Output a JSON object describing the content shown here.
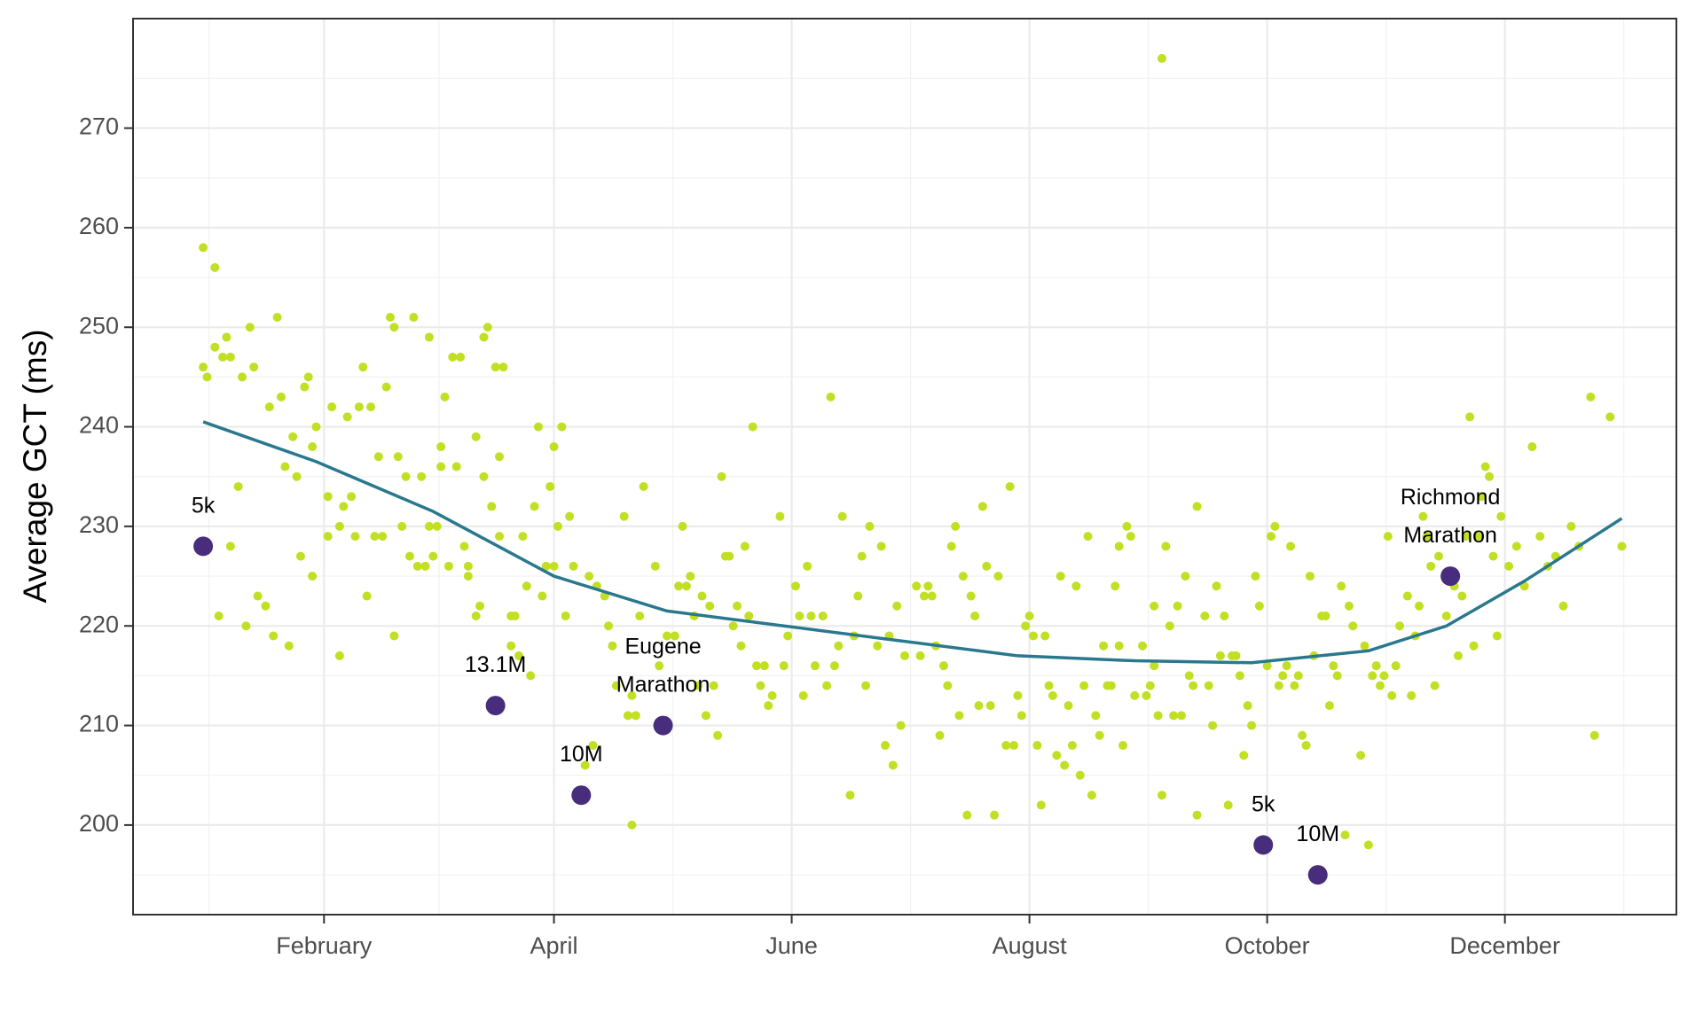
{
  "chart_data": {
    "type": "scatter",
    "y_label": "Average GCT (ms)",
    "xlim": [
      -17,
      379
    ],
    "xticks": [
      {
        "value": 32,
        "label": "February"
      },
      {
        "value": 91,
        "label": "April"
      },
      {
        "value": 152,
        "label": "June"
      },
      {
        "value": 213,
        "label": "August"
      },
      {
        "value": 274,
        "label": "October"
      },
      {
        "value": 335,
        "label": "December"
      }
    ],
    "ylim": [
      191,
      281
    ],
    "yticks": [
      200,
      210,
      220,
      230,
      240,
      250,
      260,
      270
    ],
    "grid": true,
    "points": {
      "color": "#c2df23",
      "x": [
        1,
        1,
        2,
        4,
        4,
        5,
        6,
        7,
        8,
        8,
        10,
        11,
        12,
        13,
        14,
        15,
        17,
        18,
        19,
        20,
        21,
        22,
        23,
        24,
        25,
        26,
        27,
        28,
        29,
        29,
        30,
        33,
        33,
        34,
        36,
        36,
        37,
        38,
        39,
        40,
        41,
        42,
        43,
        44,
        45,
        46,
        47,
        48,
        49,
        50,
        50,
        51,
        52,
        53,
        54,
        55,
        56,
        57,
        58,
        59,
        59,
        60,
        61,
        62,
        62,
        63,
        64,
        65,
        66,
        67,
        68,
        69,
        69,
        71,
        71,
        72,
        73,
        73,
        74,
        75,
        76,
        77,
        77,
        78,
        80,
        80,
        81,
        82,
        83,
        84,
        85,
        86,
        87,
        88,
        89,
        90,
        91,
        91,
        92,
        93,
        94,
        95,
        96,
        99,
        100,
        101,
        102,
        104,
        105,
        106,
        107,
        109,
        110,
        111,
        111,
        112,
        113,
        114,
        117,
        118,
        120,
        122,
        123,
        124,
        125,
        126,
        127,
        128,
        129,
        130,
        131,
        132,
        133,
        134,
        135,
        136,
        137,
        138,
        139,
        140,
        141,
        142,
        143,
        144,
        145,
        146,
        147,
        149,
        150,
        151,
        153,
        154,
        155,
        156,
        157,
        158,
        160,
        161,
        162,
        163,
        164,
        165,
        167,
        168,
        169,
        170,
        171,
        172,
        174,
        175,
        176,
        177,
        178,
        179,
        180,
        181,
        184,
        185,
        186,
        187,
        188,
        189,
        190,
        191,
        192,
        193,
        194,
        195,
        196,
        197,
        198,
        199,
        200,
        201,
        202,
        203,
        204,
        205,
        207,
        208,
        209,
        210,
        211,
        212,
        213,
        214,
        215,
        216,
        217,
        218,
        219,
        220,
        221,
        222,
        223,
        224,
        225,
        226,
        227,
        228,
        229,
        230,
        231,
        232,
        233,
        234,
        235,
        236,
        236,
        237,
        238,
        239,
        240,
        242,
        243,
        244,
        245,
        245,
        246,
        247,
        247,
        248,
        249,
        250,
        251,
        252,
        253,
        254,
        255,
        256,
        256,
        258,
        259,
        260,
        261,
        262,
        263,
        264,
        265,
        266,
        267,
        268,
        269,
        270,
        271,
        272,
        274,
        275,
        276,
        277,
        278,
        279,
        280,
        281,
        282,
        283,
        284,
        285,
        286,
        288,
        289,
        290,
        291,
        292,
        293,
        294,
        295,
        296,
        298,
        299,
        300,
        301,
        302,
        303,
        304,
        305,
        306,
        307,
        308,
        310,
        311,
        312,
        313,
        314,
        315,
        316,
        317,
        318,
        320,
        322,
        323,
        324,
        325,
        326,
        327,
        328,
        329,
        330,
        331,
        332,
        333,
        334,
        336,
        338,
        340,
        342,
        344,
        346,
        348,
        350,
        352,
        354,
        357,
        358,
        362,
        365
      ],
      "values": [
        258,
        246,
        245,
        248,
        256,
        221,
        247,
        249,
        228,
        247,
        234,
        245,
        220,
        250,
        246,
        223,
        222,
        242,
        219,
        251,
        243,
        236,
        218,
        239,
        235,
        227,
        244,
        245,
        225,
        238,
        240,
        229,
        233,
        242,
        230,
        217,
        232,
        241,
        233,
        229,
        242,
        246,
        223,
        242,
        229,
        237,
        229,
        244,
        251,
        250,
        219,
        237,
        230,
        235,
        227,
        251,
        226,
        235,
        226,
        249,
        230,
        227,
        230,
        238,
        236,
        243,
        226,
        247,
        236,
        247,
        228,
        225,
        226,
        239,
        221,
        222,
        235,
        249,
        250,
        232,
        246,
        237,
        229,
        246,
        218,
        221,
        221,
        217,
        229,
        224,
        215,
        232,
        240,
        223,
        226,
        234,
        226,
        238,
        230,
        240,
        221,
        231,
        226,
        206,
        225,
        208,
        224,
        223,
        220,
        218,
        214,
        231,
        211,
        213,
        200,
        211,
        221,
        234,
        226,
        216,
        219,
        219,
        224,
        230,
        224,
        225,
        221,
        214,
        223,
        211,
        222,
        214,
        209,
        235,
        227,
        227,
        220,
        222,
        218,
        228,
        221,
        240,
        216,
        214,
        216,
        212,
        213,
        231,
        216,
        219,
        224,
        221,
        213,
        226,
        221,
        216,
        221,
        214,
        243,
        216,
        218,
        231,
        203,
        219,
        223,
        227,
        214,
        230,
        218,
        228,
        208,
        219,
        206,
        222,
        210,
        217,
        224,
        217,
        223,
        224,
        223,
        218,
        209,
        216,
        214,
        228,
        230,
        211,
        225,
        201,
        223,
        221,
        212,
        232,
        226,
        212,
        201,
        225,
        208,
        234,
        208,
        213,
        211,
        220,
        221,
        219,
        208,
        202,
        219,
        214,
        213,
        207,
        225,
        206,
        212,
        208,
        224,
        205,
        214,
        229,
        203,
        211,
        209,
        218,
        214,
        214,
        224,
        218,
        228,
        208,
        230,
        229,
        213,
        218,
        213,
        214,
        222,
        216,
        211,
        277,
        203,
        228,
        220,
        211,
        222,
        211,
        225,
        215,
        214,
        201,
        232,
        221,
        214,
        210,
        224,
        217,
        221,
        202,
        217,
        217,
        215,
        207,
        212,
        210,
        225,
        222,
        216,
        229,
        230,
        214,
        215,
        216,
        228,
        214,
        215,
        209,
        208,
        225,
        217,
        221,
        221,
        212,
        216,
        215,
        224,
        199,
        222,
        220,
        207,
        218,
        198,
        215,
        216,
        214,
        215,
        229,
        213,
        216,
        220,
        223,
        213,
        219,
        222,
        231,
        229,
        226,
        214,
        227,
        221,
        224,
        217,
        223,
        229,
        241,
        218,
        229,
        233,
        236,
        235,
        227,
        219,
        231,
        226,
        228,
        224,
        238,
        229,
        226,
        227,
        222,
        230,
        228,
        243,
        209,
        241,
        228
      ]
    },
    "trend": {
      "color": "#2a788e",
      "x": [
        1,
        30,
        60,
        91,
        120,
        150,
        180,
        210,
        240,
        270,
        300,
        320,
        340,
        365
      ],
      "values": [
        240.5,
        236.5,
        231.5,
        225,
        221.5,
        220,
        218.5,
        217,
        216.5,
        216.3,
        217.5,
        220,
        224.5,
        230.8
      ]
    },
    "races": {
      "color": "#472d7b",
      "x": [
        1,
        76,
        98,
        119,
        273,
        287,
        321
      ],
      "values": [
        228,
        212,
        203,
        210,
        198,
        195,
        225
      ],
      "labels": [
        "5k",
        "13.1M",
        "10M",
        "Eugene Marathon",
        "5k",
        "10M",
        "Richmond Marathon"
      ]
    }
  }
}
